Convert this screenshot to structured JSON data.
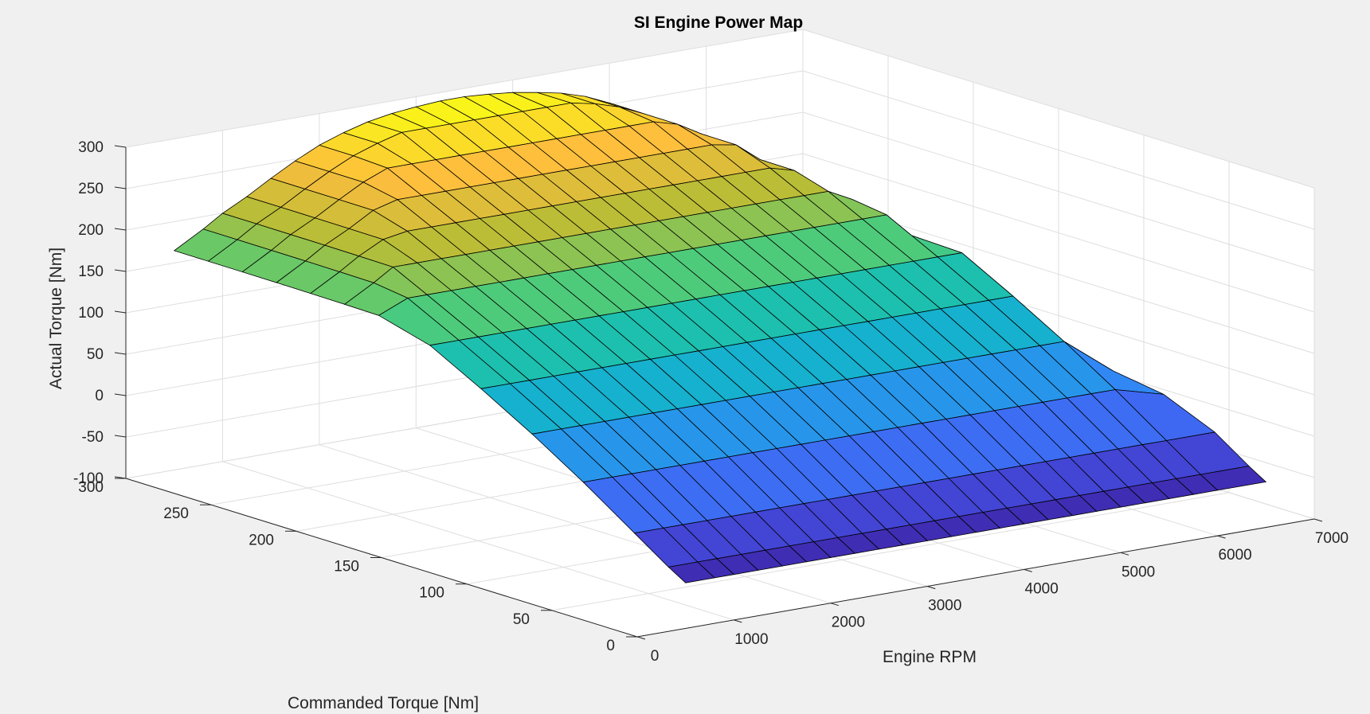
{
  "chart_data": {
    "type": "surface",
    "title": "SI Engine Power Map",
    "xlabel": "Engine RPM",
    "ylabel": "Commanded Torque [Nm]",
    "zlabel": "Actual Torque [Nm]",
    "xlim": [
      0,
      7000
    ],
    "ylim": [
      0,
      300
    ],
    "zlim": [
      -100,
      300
    ],
    "x_ticks": [
      0,
      1000,
      2000,
      3000,
      4000,
      5000,
      6000,
      7000
    ],
    "y_ticks": [
      0,
      50,
      100,
      150,
      200,
      250,
      300
    ],
    "z_ticks": [
      -100,
      -50,
      0,
      50,
      100,
      150,
      200,
      250,
      300
    ],
    "grid": true,
    "colormap": "parula",
    "rpm": [
      500,
      800,
      1000,
      1250,
      1500,
      1750,
      2000,
      2250,
      2500,
      2750,
      3000,
      3250,
      3500,
      3750,
      4000,
      4250,
      4500,
      4750,
      5000,
      5250,
      5500,
      5750,
      6000,
      6500
    ],
    "commanded_torque": [
      0,
      10,
      30,
      60,
      90,
      120,
      150,
      180,
      200,
      220,
      240,
      260,
      280,
      300
    ],
    "max_torque_curve": [
      165,
      185,
      200,
      215,
      232,
      248,
      262,
      272,
      280,
      285,
      288,
      290,
      290,
      288,
      285,
      280,
      274,
      265,
      252,
      235,
      212,
      185,
      150,
      40
    ],
    "motoring_torque": -45,
    "colors": {
      "background": "#f0f0f0",
      "pane": "#ffffff",
      "mesh_edge": "#000000"
    }
  }
}
